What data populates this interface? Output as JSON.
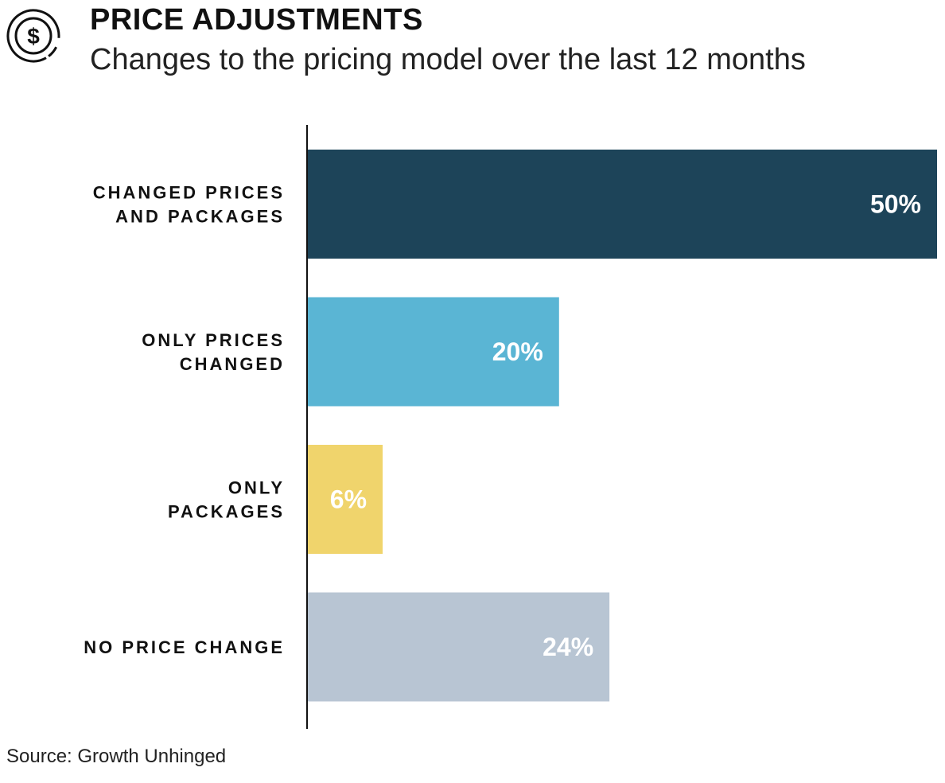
{
  "header": {
    "icon": "dollar-circle-icon",
    "title": "PRICE ADJUSTMENTS",
    "subtitle": "Changes to the pricing model over the last 12 months"
  },
  "chart_data": {
    "type": "bar",
    "orientation": "horizontal",
    "categories": [
      [
        "CHANGED PRICES",
        "AND PACKAGES"
      ],
      [
        "ONLY PRICES",
        "CHANGED"
      ],
      [
        "ONLY",
        "PACKAGES"
      ],
      [
        "NO PRICE CHANGE"
      ]
    ],
    "values": [
      50,
      20,
      6,
      24
    ],
    "value_labels": [
      "50%",
      "20%",
      "6%",
      "24%"
    ],
    "colors": [
      "#1d4459",
      "#5ab5d4",
      "#f0d46c",
      "#b8c5d3"
    ],
    "xlim": [
      0,
      50
    ],
    "grid": false,
    "legend": "none"
  },
  "footer": {
    "source": "Source: Growth Unhinged"
  }
}
